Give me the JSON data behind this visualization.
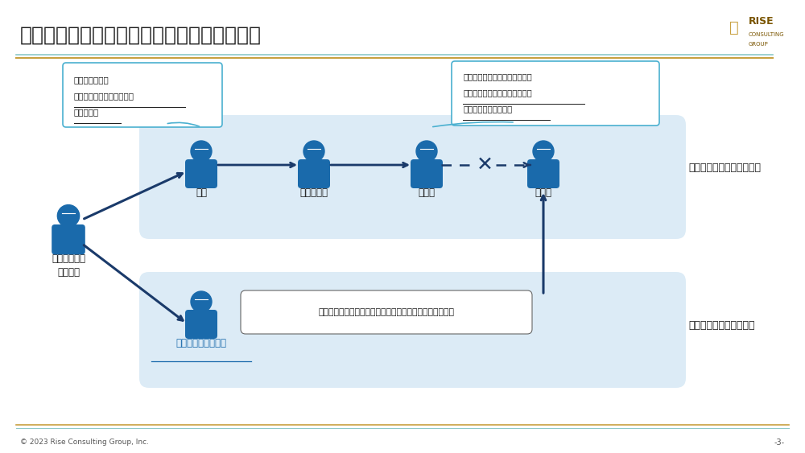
{
  "title": "タイトル：対象企業の訪問アポ取りのルート",
  "bg_color": "#ffffff",
  "title_color": "#1a1a1a",
  "title_fontsize": 18,
  "header_line_colors": [
    "#a8c8c8",
    "#c8a850"
  ],
  "person_color": "#1a6aab",
  "route1_bg": "#d6e8f5",
  "route2_bg": "#d6e8f5",
  "arrow_color": "#1a3a6a",
  "dashed_color": "#1a3a6a",
  "callout_border": "#4ab0d0",
  "callout_text1_lines": [
    "日本と異なり、",
    "そもそも受付が機能しない",
    "ことが多い"
  ],
  "callout_text2_lines": [
    "かろうじて部門長までしかつな",
    "がらなく、意思決定権のある経",
    "営陣までは極めて困難"
  ],
  "nodes_route1": [
    "受付",
    "部門担当者",
    "部門長",
    "経営陣"
  ],
  "node_project": "プロジェクト\nメンバー",
  "node_relation": "リレーション保有者",
  "label_official": "オフィシャルルートの場合",
  "label_relation_use": "リレーション活用の場合",
  "relation_box_text": "リレーション活用で容易に経営陣にたどり着くことが多い",
  "footer_text": "© 2023 Rise Consulting Group, Inc.",
  "page_num": "-3-",
  "cross_color": "#1a3a6a",
  "up_arrow_color": "#1a3a6a",
  "relation_underline_color": "#1a6aab"
}
